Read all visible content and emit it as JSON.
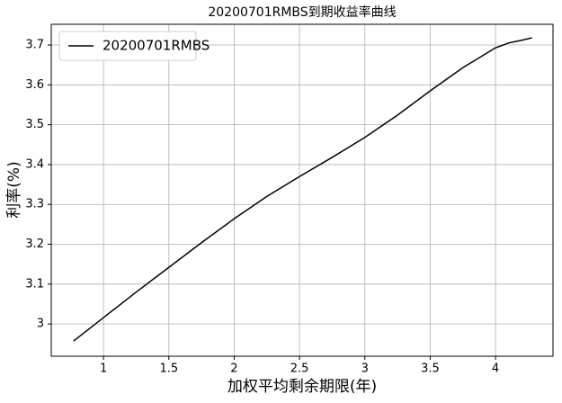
{
  "chart_data": {
    "type": "line",
    "title": "20200701RMBS到期收益率曲线",
    "x_label": "加权平均剩余期限(年)",
    "y_label": "利率(%)",
    "x": [
      0.77,
      1.0,
      1.25,
      1.5,
      1.75,
      2.0,
      2.25,
      2.5,
      2.75,
      3.0,
      3.25,
      3.5,
      3.75,
      4.0,
      4.1,
      4.2,
      4.28
    ],
    "series": [
      {
        "name": "20200701RMBS",
        "color": "#000000",
        "values": [
          2.957,
          3.016,
          3.08,
          3.142,
          3.204,
          3.264,
          3.32,
          3.37,
          3.418,
          3.468,
          3.524,
          3.585,
          3.643,
          3.693,
          3.705,
          3.712,
          3.718
        ]
      }
    ],
    "xlim": [
      0.6,
      4.44
    ],
    "ylim": [
      2.919,
      3.752
    ],
    "xticks": [
      1.0,
      1.5,
      2.0,
      2.5,
      3.0,
      3.5,
      4.0
    ],
    "yticks": [
      3.0,
      3.1,
      3.2,
      3.3,
      3.4,
      3.5,
      3.6,
      3.7
    ],
    "grid": true,
    "legend": "upper left"
  }
}
